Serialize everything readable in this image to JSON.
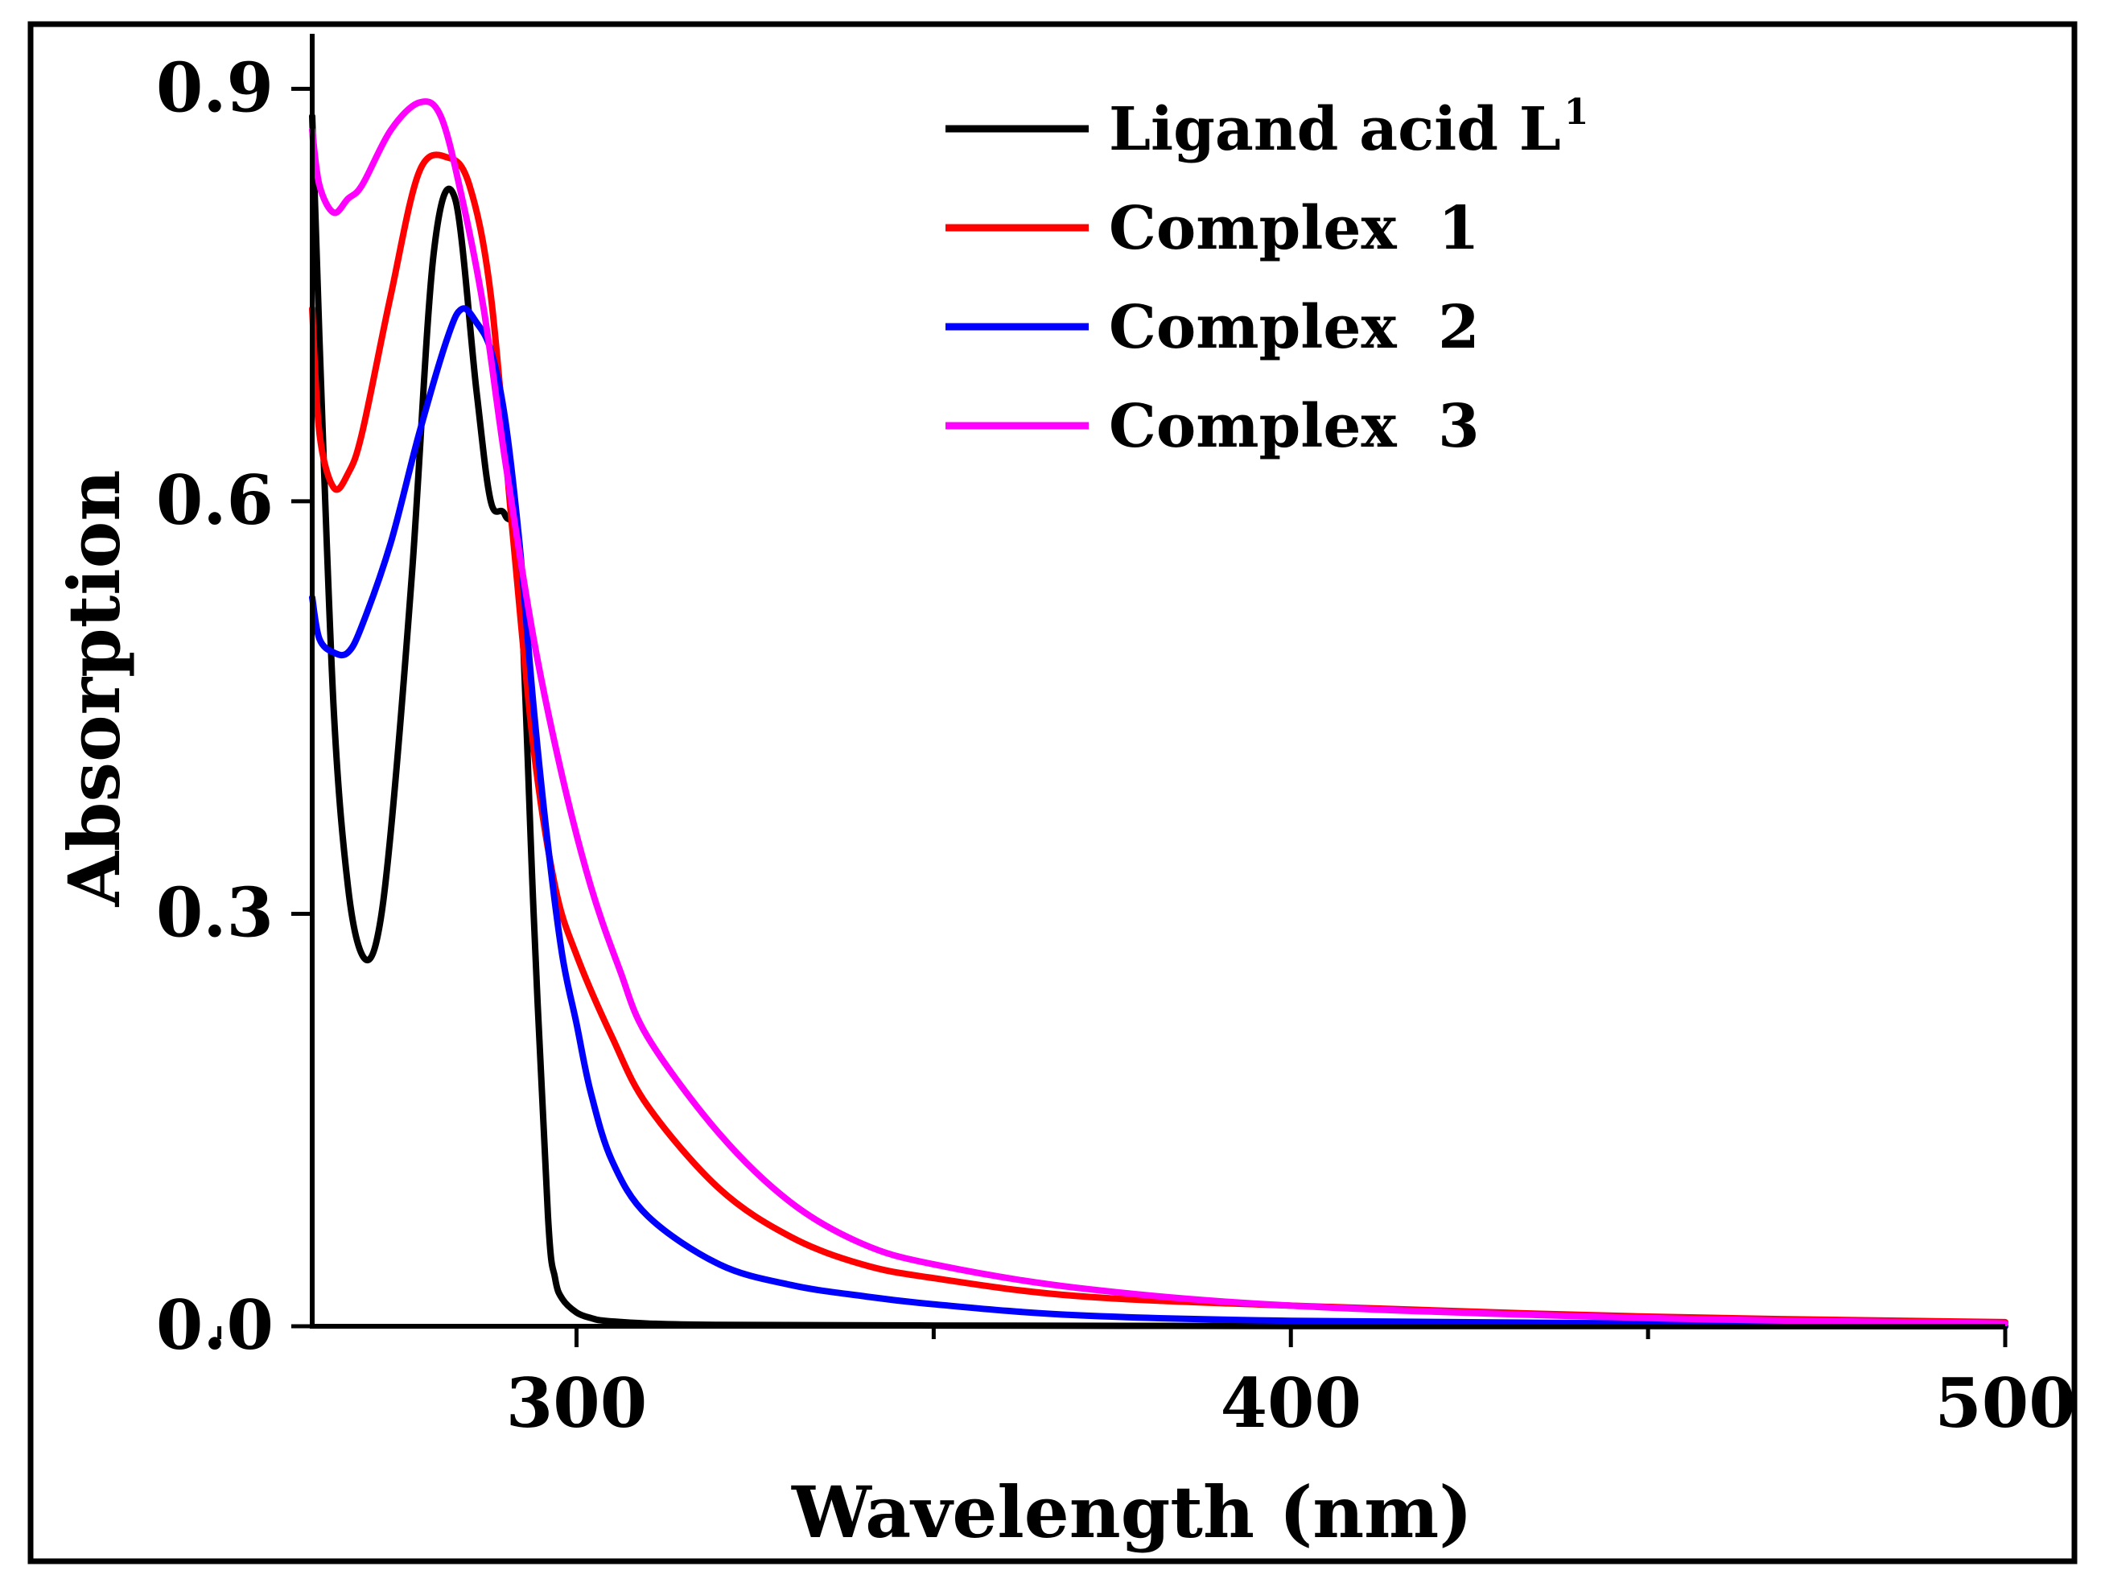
{
  "chart_data": {
    "type": "line",
    "title": "",
    "xlabel": "Wavelength (nm)",
    "ylabel": "Absorption",
    "xlim": [
      263,
      500
    ],
    "ylim": [
      0.0,
      0.94
    ],
    "xticks_major": [
      300,
      400,
      500
    ],
    "xticks_minor": [
      250,
      350,
      450
    ],
    "yticks": [
      0.0,
      0.3,
      0.6,
      0.9
    ],
    "ytick_labels": [
      "0.0",
      "0.3",
      "0.6",
      "0.9"
    ],
    "grid": false,
    "legend_position": "top-right",
    "series": [
      {
        "name": "Ligand acid L",
        "name_superscript": "1",
        "color": "#000000",
        "x": [
          263,
          264,
          266,
          268,
          270,
          272,
          274,
          277,
          280,
          283,
          286,
          288,
          290,
          292,
          294,
          296,
          297,
          298,
          300,
          302,
          304,
          310,
          320,
          350,
          400,
          450,
          500
        ],
        "y": [
          0.88,
          0.72,
          0.45,
          0.32,
          0.27,
          0.28,
          0.36,
          0.55,
          0.78,
          0.82,
          0.68,
          0.6,
          0.59,
          0.55,
          0.3,
          0.08,
          0.035,
          0.02,
          0.01,
          0.006,
          0.004,
          0.002,
          0.001,
          0.0005,
          0.0002,
          0.0001,
          0.0
        ]
      },
      {
        "name": "Complex  1",
        "color": "#ff0000",
        "x": [
          263,
          264,
          266,
          268,
          270,
          274,
          278,
          282,
          285,
          288,
          291,
          294,
          297,
          300,
          305,
          310,
          320,
          330,
          340,
          350,
          370,
          400,
          450,
          500
        ],
        "y": [
          0.74,
          0.65,
          0.61,
          0.62,
          0.65,
          0.75,
          0.84,
          0.85,
          0.83,
          0.75,
          0.58,
          0.42,
          0.32,
          0.27,
          0.21,
          0.16,
          0.1,
          0.065,
          0.045,
          0.035,
          0.022,
          0.015,
          0.007,
          0.003
        ]
      },
      {
        "name": "Complex  2",
        "color": "#0000ff",
        "x": [
          263,
          264,
          266,
          268,
          270,
          274,
          278,
          282,
          284,
          286,
          288,
          290,
          292,
          294,
          296,
          298,
          300,
          302,
          305,
          310,
          320,
          330,
          340,
          350,
          370,
          400,
          450,
          500
        ],
        "y": [
          0.53,
          0.5,
          0.49,
          0.49,
          0.51,
          0.57,
          0.65,
          0.72,
          0.74,
          0.73,
          0.71,
          0.66,
          0.57,
          0.45,
          0.35,
          0.27,
          0.22,
          0.17,
          0.12,
          0.08,
          0.045,
          0.03,
          0.022,
          0.016,
          0.008,
          0.004,
          0.002,
          0.0
        ]
      },
      {
        "name": "Complex  3",
        "color": "#ff00ff",
        "x": [
          263,
          264,
          266,
          268,
          270,
          274,
          278,
          281,
          284,
          287,
          290,
          294,
          298,
          302,
          306,
          310,
          320,
          330,
          340,
          350,
          370,
          400,
          450,
          500
        ],
        "y": [
          0.87,
          0.83,
          0.81,
          0.82,
          0.83,
          0.87,
          0.89,
          0.88,
          0.82,
          0.74,
          0.63,
          0.5,
          0.4,
          0.32,
          0.26,
          0.21,
          0.14,
          0.09,
          0.06,
          0.045,
          0.028,
          0.015,
          0.006,
          0.002
        ]
      }
    ]
  }
}
